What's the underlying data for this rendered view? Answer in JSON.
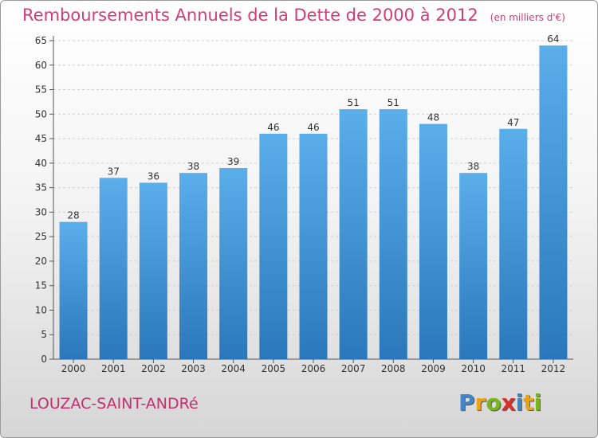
{
  "chart_data": {
    "type": "bar",
    "title": "Remboursements Annuels de la Dette de 2000 à 2012",
    "subtitle": "(en milliers d'€)",
    "categories": [
      "2000",
      "2001",
      "2002",
      "2003",
      "2004",
      "2005",
      "2006",
      "2007",
      "2008",
      "2009",
      "2010",
      "2011",
      "2012"
    ],
    "values": [
      28,
      37,
      36,
      38,
      39,
      46,
      46,
      51,
      51,
      48,
      38,
      47,
      64
    ],
    "ylim": [
      0,
      65
    ],
    "yticks": [
      "0",
      "5",
      "10",
      "15",
      "20",
      "25",
      "30",
      "35",
      "40",
      "45",
      "50",
      "55",
      "60",
      "65"
    ],
    "grid": true,
    "bar_color": "#4a9fe0"
  },
  "commune": "LOUZAC-SAINT-ANDRé",
  "logo": {
    "letters": [
      "P",
      "r",
      "o",
      "x",
      "i",
      "t",
      "i"
    ],
    "colors": [
      "#3e86c8",
      "#e8a317",
      "#7ab51d",
      "#d6312b",
      "#3e86c8",
      "#e8a317",
      "#7ab51d"
    ]
  }
}
